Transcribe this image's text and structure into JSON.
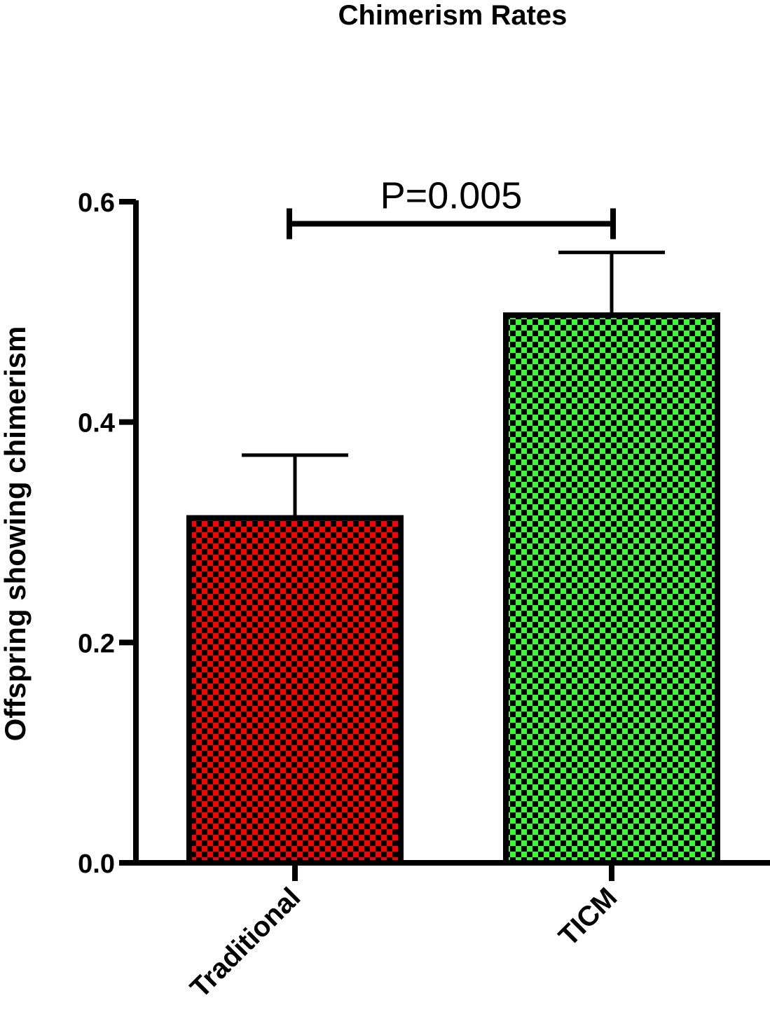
{
  "chart_data": {
    "type": "bar",
    "title": "Chimerism Rates",
    "xlabel": "",
    "ylabel": "Offspring showing chimerism",
    "ylim": [
      0,
      0.6
    ],
    "yticks": [
      0.0,
      0.2,
      0.4,
      0.6
    ],
    "ytick_labels": [
      "0.0",
      "0.2",
      "0.4",
      "0.6"
    ],
    "categories": [
      "Traditional",
      "TICM"
    ],
    "values": [
      0.313,
      0.497
    ],
    "error_upper": [
      0.057,
      0.057
    ],
    "bar_colors": [
      "#ff0000",
      "#33ff33"
    ],
    "bar_pattern": "black checkerboard",
    "grid": false,
    "legend": "none",
    "annotations": [
      {
        "text": "P=0.005",
        "from_category": "Traditional",
        "to_category": "TICM",
        "y": 0.58
      }
    ]
  }
}
